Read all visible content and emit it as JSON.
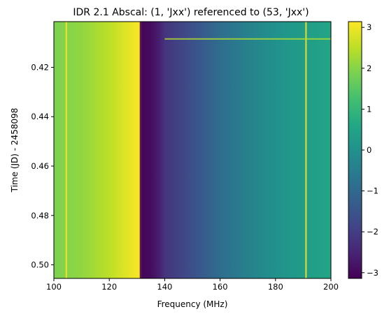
{
  "chart_data": {
    "type": "heatmap",
    "title": "IDR 2.1 Abscal: (1, 'Jxx') referenced to (53, 'Jxx')",
    "xlabel": "Frequency (MHz)",
    "ylabel": "Time (JD) - 2458098",
    "xlim": [
      100,
      200
    ],
    "ylim": [
      0.5055,
      0.4015
    ],
    "y_inverted": true,
    "x_ticks": [
      100,
      120,
      140,
      160,
      180,
      200
    ],
    "x_tick_labels": [
      "100",
      "120",
      "140",
      "160",
      "180",
      "200"
    ],
    "y_ticks": [
      0.42,
      0.44,
      0.46,
      0.48,
      0.5
    ],
    "y_tick_labels": [
      "0.42",
      "0.44",
      "0.46",
      "0.48",
      "0.50"
    ],
    "colorbar": {
      "colormap": "viridis",
      "range": [
        -3.14,
        3.14
      ],
      "ticks": [
        3,
        2,
        1,
        0,
        -1,
        -2,
        -3
      ],
      "tick_labels": [
        "3",
        "2",
        "1",
        "0",
        "−1",
        "−2",
        "−3"
      ]
    },
    "phase_profile": {
      "freq_mhz": [
        100,
        110,
        120,
        125,
        130,
        131,
        132,
        135,
        138,
        140,
        150,
        160,
        170,
        180,
        190,
        200
      ],
      "value": [
        1.9,
        2.1,
        2.5,
        2.8,
        3.05,
        3.1,
        -3.05,
        -2.95,
        -2.6,
        -2.2,
        -1.6,
        -0.9,
        -0.4,
        0.0,
        0.3,
        0.55
      ]
    },
    "wrap_boundary_freq_mhz": 131.5,
    "bright_lines_freq_mhz": [
      104.5,
      191
    ],
    "bright_row_time": 0.4085,
    "grid": false
  }
}
